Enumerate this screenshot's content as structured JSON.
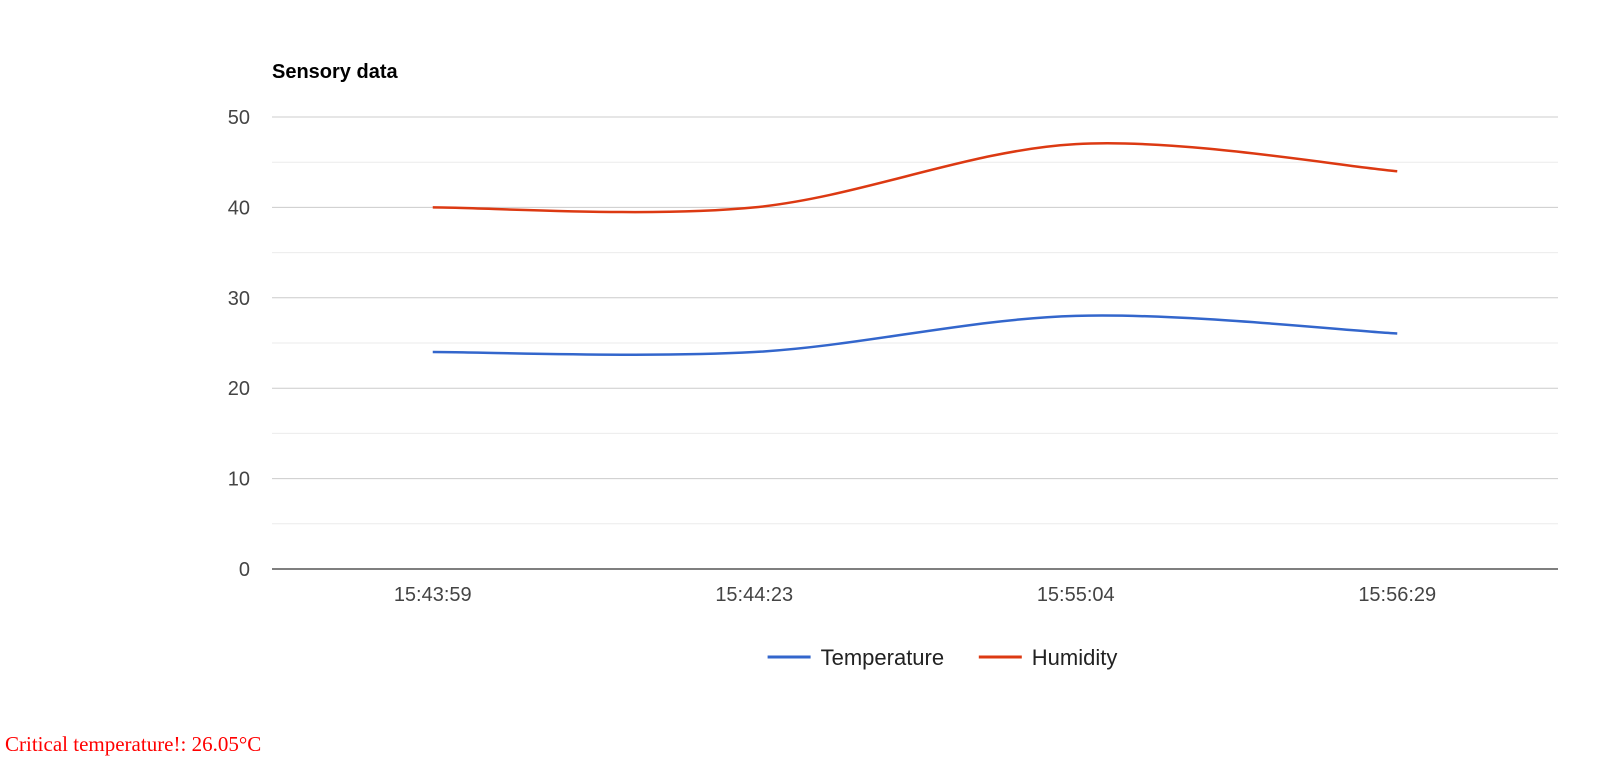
{
  "chart_data": {
    "type": "line",
    "title": "Sensory data",
    "xlabel": "",
    "ylabel": "",
    "categories": [
      "15:43:59",
      "15:44:23",
      "15:55:04",
      "15:56:29"
    ],
    "ylim": [
      0,
      50
    ],
    "yticks": [
      0,
      10,
      20,
      30,
      40,
      50
    ],
    "grid": true,
    "minor_grid": true,
    "curve": "smooth",
    "legend_position": "bottom",
    "series": [
      {
        "name": "Temperature",
        "color": "#3366cc",
        "values": [
          24,
          24,
          28,
          26.05
        ]
      },
      {
        "name": "Humidity",
        "color": "#dc3912",
        "values": [
          40,
          40,
          47,
          44
        ]
      }
    ]
  },
  "alert": {
    "text": "Critical temperature!: 26.05°C",
    "color": "#ff0000"
  }
}
